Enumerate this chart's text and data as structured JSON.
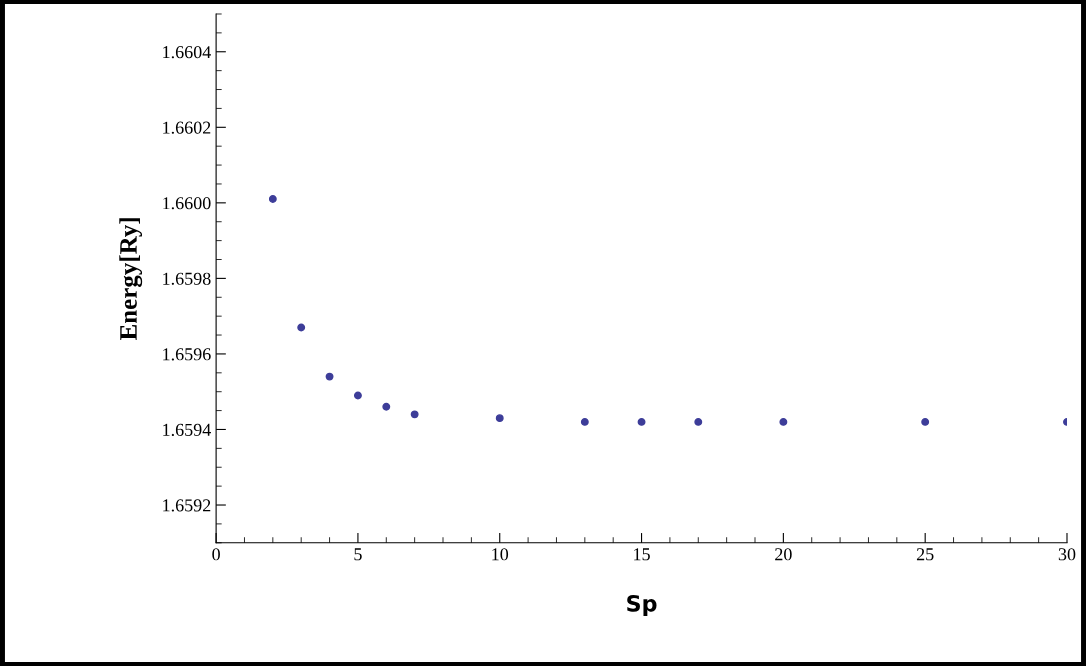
{
  "chart_data": {
    "type": "scatter",
    "xlabel": "Sp",
    "ylabel": "Energy[Ry]",
    "x": [
      2,
      3,
      4,
      5,
      6,
      7,
      10,
      13,
      15,
      17,
      20,
      25,
      30
    ],
    "values": [
      1.66001,
      1.65967,
      1.65954,
      1.65949,
      1.65946,
      1.65944,
      1.65943,
      1.65942,
      1.65942,
      1.65942,
      1.65942,
      1.65942,
      1.65942
    ],
    "color": "#3d3d99",
    "marker": "circle",
    "xlim": [
      0,
      30
    ],
    "xticks": [
      0,
      5,
      10,
      15,
      20,
      25,
      30
    ],
    "ylim": [
      1.6591,
      1.6605
    ],
    "yticks": [
      {
        "value": 1.6592,
        "label": "1.6592"
      },
      {
        "value": 1.6594,
        "label": "1.6594"
      },
      {
        "value": 1.6596,
        "label": "1.6596"
      },
      {
        "value": 1.6598,
        "label": "1.6598"
      },
      {
        "value": 1.66,
        "label": "1.6600"
      },
      {
        "value": 1.6602,
        "label": "1.6602"
      },
      {
        "value": 1.6604,
        "label": "1.6604"
      }
    ],
    "grid": false,
    "legend": false
  }
}
